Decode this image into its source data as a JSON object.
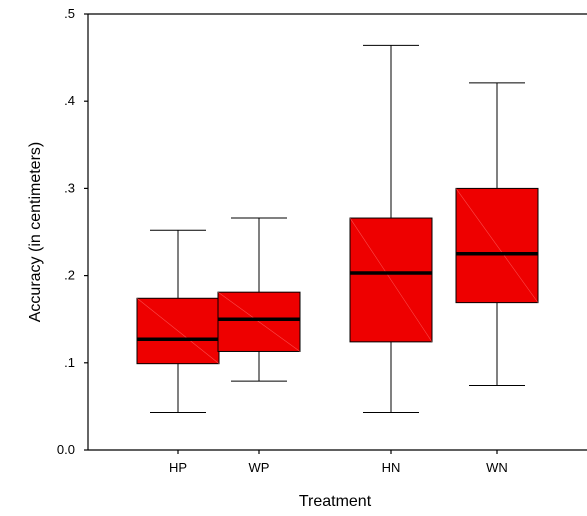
{
  "chart_data": {
    "type": "box",
    "xlabel": "Treatment",
    "ylabel": "Accuracy (in centimeters)",
    "ylim": [
      0.0,
      0.5
    ],
    "yticks": [
      0.0,
      0.1,
      0.2,
      0.3,
      0.4,
      0.5
    ],
    "ytick_labels": [
      "0.0",
      ".1",
      ".2",
      ".3",
      ".4",
      ".5"
    ],
    "categories": [
      "HP",
      "WP",
      "HN",
      "WN"
    ],
    "box_color": "#ee0000",
    "median_color": "#000000",
    "boxes": [
      {
        "category": "HP",
        "min": 0.043,
        "q1": 0.099,
        "median": 0.127,
        "q3": 0.174,
        "max": 0.252
      },
      {
        "category": "WP",
        "min": 0.079,
        "q1": 0.113,
        "median": 0.15,
        "q3": 0.181,
        "max": 0.266
      },
      {
        "category": "HN",
        "min": 0.043,
        "q1": 0.124,
        "median": 0.203,
        "q3": 0.266,
        "max": 0.464
      },
      {
        "category": "WN",
        "min": 0.074,
        "q1": 0.169,
        "median": 0.225,
        "q3": 0.3,
        "max": 0.421
      }
    ],
    "grid": false,
    "legend": "none"
  }
}
